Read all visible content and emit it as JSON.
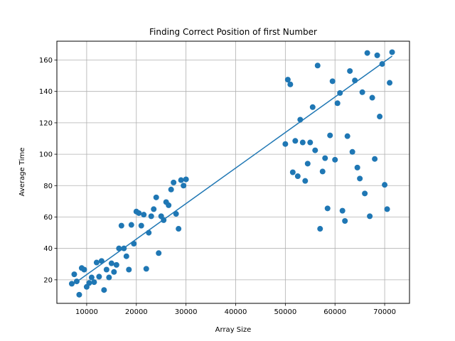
{
  "chart_data": {
    "type": "scatter",
    "title": "Finding Correct Position of first Number",
    "xlabel": "Array Size",
    "ylabel": "Average Time",
    "xlim": [
      4000,
      75000
    ],
    "ylim": [
      5,
      172
    ],
    "xticks": [
      10000,
      20000,
      30000,
      40000,
      50000,
      60000,
      70000
    ],
    "yticks": [
      20,
      40,
      60,
      80,
      100,
      120,
      140,
      160
    ],
    "grid": true,
    "color": "#1f77b4",
    "series": [
      {
        "style": "points-with-line",
        "x": [
          7000,
          7500,
          8000,
          8500,
          9000,
          9500,
          10000,
          10500,
          11000,
          11500,
          12000,
          12500,
          13000,
          13500,
          14000,
          14500,
          15000,
          15500,
          16000,
          16500,
          17000,
          17500,
          18000,
          18500,
          19000,
          19500,
          20000,
          20500,
          21000,
          21500,
          22000,
          22500,
          23000,
          23500,
          24000,
          24500,
          25000,
          25500,
          26000,
          26500,
          27000,
          27500,
          28000,
          28500,
          29000,
          29500,
          30000,
          50000,
          50500,
          51000,
          51500,
          52000,
          52500,
          53000,
          53500,
          54000,
          54500,
          55000,
          55500,
          56000,
          56500,
          57000,
          57500,
          58000,
          58500,
          59000,
          59500,
          60000,
          60500,
          61000,
          61500,
          62000,
          62500,
          63000,
          63500,
          64000,
          64500,
          65000,
          65500,
          66000,
          66500,
          67000,
          67500,
          68000,
          68500,
          69000,
          69500,
          70000,
          70500,
          71000,
          71500
        ],
        "y": [
          17.5,
          23.5,
          19,
          10.5,
          27.5,
          26.5,
          15.5,
          18,
          21.5,
          18.5,
          31,
          22,
          32,
          13.5,
          26.5,
          21.5,
          30.5,
          25,
          29.5,
          40,
          54.5,
          40,
          35,
          26.5,
          55,
          43,
          63.5,
          62.5,
          54.5,
          61.5,
          27,
          50,
          60.5,
          65,
          72.5,
          37,
          60.5,
          58,
          69.5,
          67.5,
          77.5,
          82,
          62,
          52.5,
          83.5,
          80,
          84,
          106.5,
          147.5,
          144.5,
          88.5,
          108.5,
          86,
          122,
          107.5,
          83,
          94,
          107.5,
          130,
          102.5,
          156.5,
          52.5,
          89,
          97.5,
          65.5,
          112,
          146.5,
          96.5,
          132.5,
          139,
          64,
          57.5,
          111.5,
          153,
          101.5,
          147,
          91.5,
          84.5,
          139.5,
          75,
          164.5,
          60.5,
          136,
          97,
          163,
          124,
          157.5,
          80.5,
          65,
          145.5,
          165
        ]
      }
    ],
    "fit_line": {
      "x": [
        7000,
        71500
      ],
      "y": [
        16.5,
        162.5
      ]
    }
  }
}
